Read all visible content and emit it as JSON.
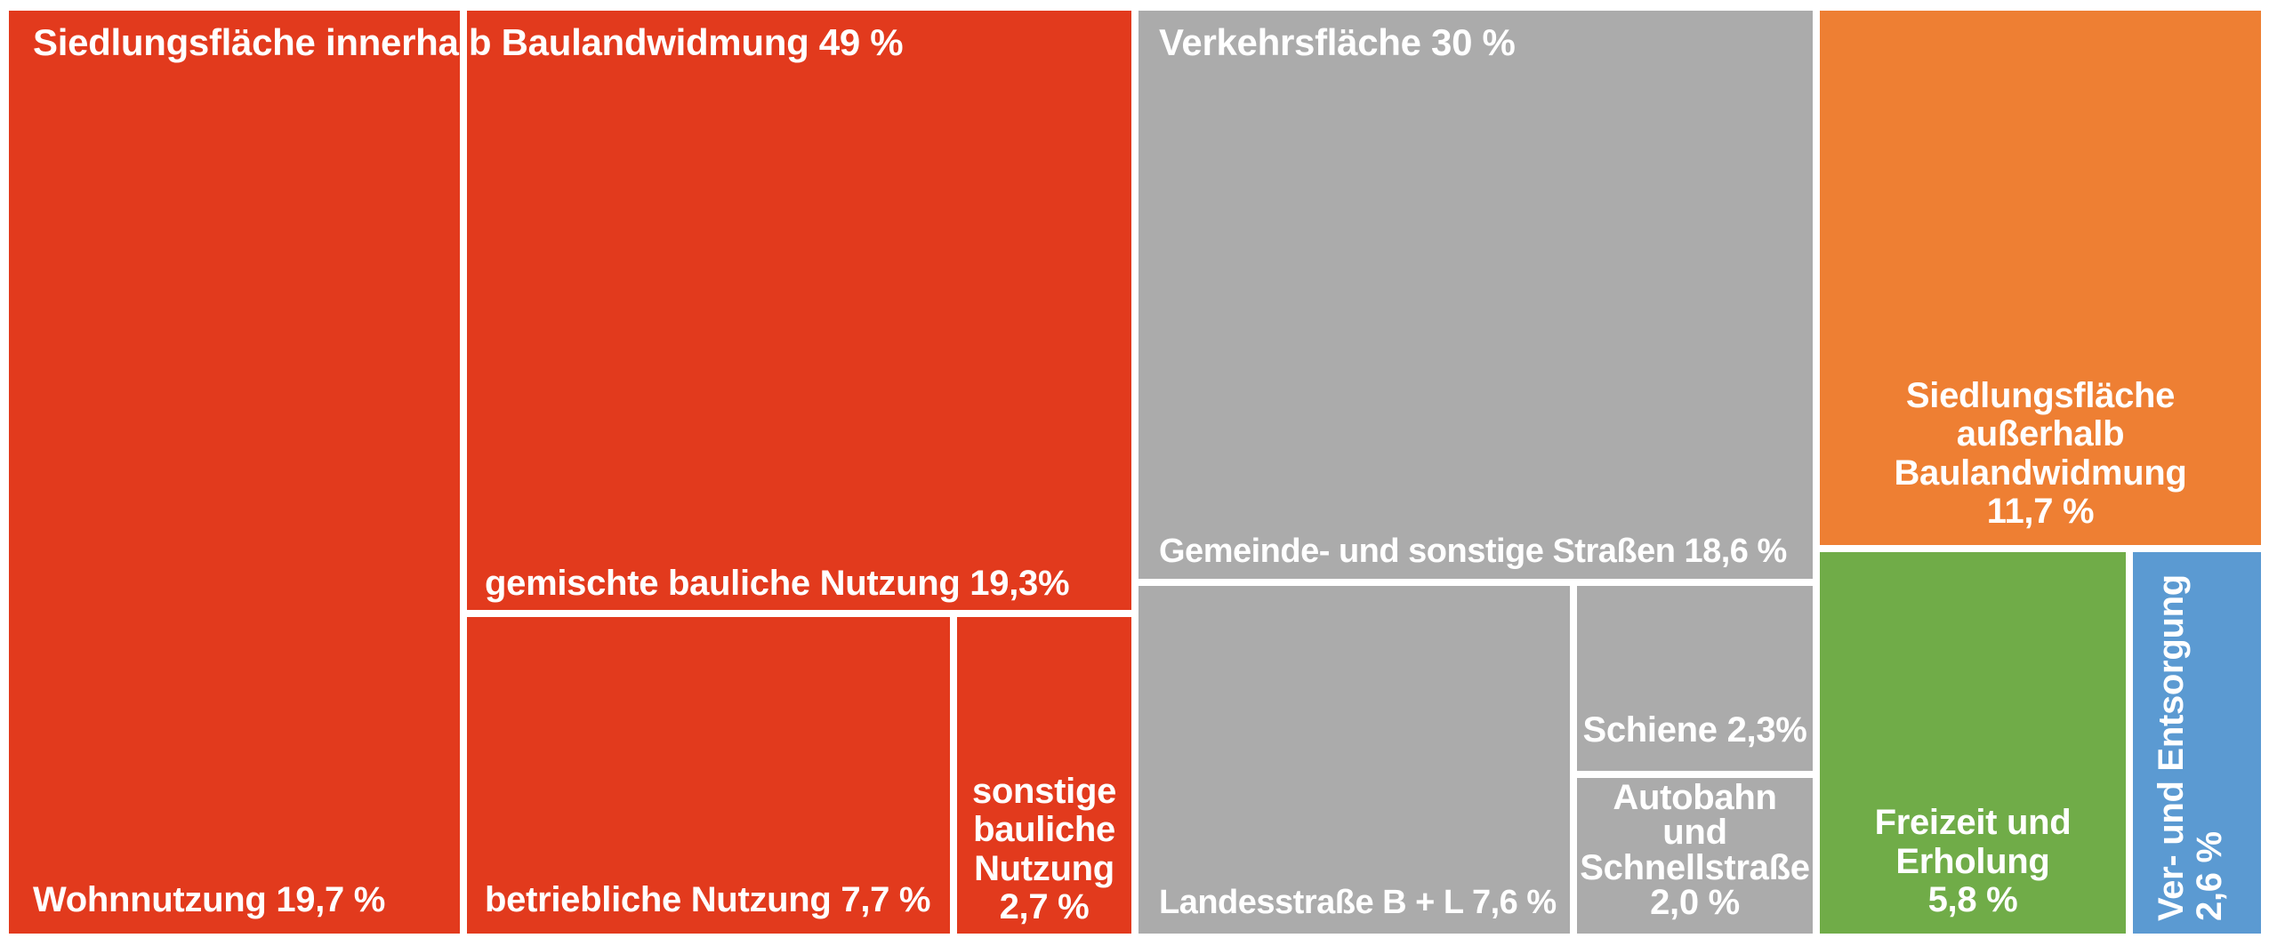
{
  "chart_data": {
    "type": "treemap",
    "title": "",
    "unit": "%",
    "legend": "none",
    "gridlines": "none",
    "layout_hint": "treemap tiles separated by 8px white gutters, labels bottom-anchored, group headers top-left",
    "groups": [
      {
        "name": "Siedlungsfläche innerhalb Baulandwidmung",
        "value": 49,
        "header_label": "Siedlungsfläche innerhalb Baulandwidmung 49 %",
        "color": "#e23a1d",
        "children": [
          {
            "name": "Wohnnutzung",
            "value": 19.7,
            "label": "Wohnnutzung 19,7 %"
          },
          {
            "name": "gemischte bauliche Nutzung",
            "value": 19.3,
            "label": "gemischte bauliche Nutzung 19,3%"
          },
          {
            "name": "betriebliche Nutzung",
            "value": 7.7,
            "label": "betriebliche Nutzung 7,7 %"
          },
          {
            "name": "sonstige bauliche Nutzung",
            "value": 2.7,
            "label_name": "sonstige bauliche Nutzung",
            "label_value": "2,7 %"
          }
        ]
      },
      {
        "name": "Verkehrsfläche",
        "value": 30,
        "header_label": "Verkehrsfläche 30 %",
        "color": "#ababab",
        "children": [
          {
            "name": "Gemeinde- und sonstige Straßen",
            "value": 18.6,
            "label": "Gemeinde- und sonstige Straßen 18,6 %"
          },
          {
            "name": "Landesstraße B + L",
            "value": 7.6,
            "label": "Landesstraße B + L 7,6 %"
          },
          {
            "name": "Schiene",
            "value": 2.3,
            "label": "Schiene 2,3%"
          },
          {
            "name": "Autobahn und Schnellstraße",
            "value": 2.0,
            "label_name": "Autobahn und Schnellstraße",
            "label_value": "2,0 %"
          }
        ]
      }
    ],
    "singles": [
      {
        "name": "Siedlungsfläche außerhalb Baulandwidmung",
        "value": 11.7,
        "label_name": "Siedlungsfläche außerhalb Baulandwidmung",
        "label_value": "11,7 %",
        "color": "#ee7f33"
      },
      {
        "name": "Freizeit und Erholung",
        "value": 5.8,
        "label_name": "Freizeit und Erholung",
        "label_value": "5,8 %",
        "color": "#70ac48"
      },
      {
        "name": "Ver- und Entsorgung",
        "value": 2.6,
        "label_name": "Ver- und Entsorgung",
        "label_value": "2,6 %",
        "color": "#5b9ad2"
      }
    ],
    "colors": {
      "siedlungsflaeche_innerhalb": "#e23a1d",
      "verkehrsflaeche": "#ababab",
      "siedlungsflaeche_ausserhalb": "#ee7f33",
      "freizeit_und_erholung": "#70ac48",
      "ver_und_entsorgung": "#5b9ad2",
      "background": "#ffffff",
      "text": "#ffffff"
    }
  }
}
